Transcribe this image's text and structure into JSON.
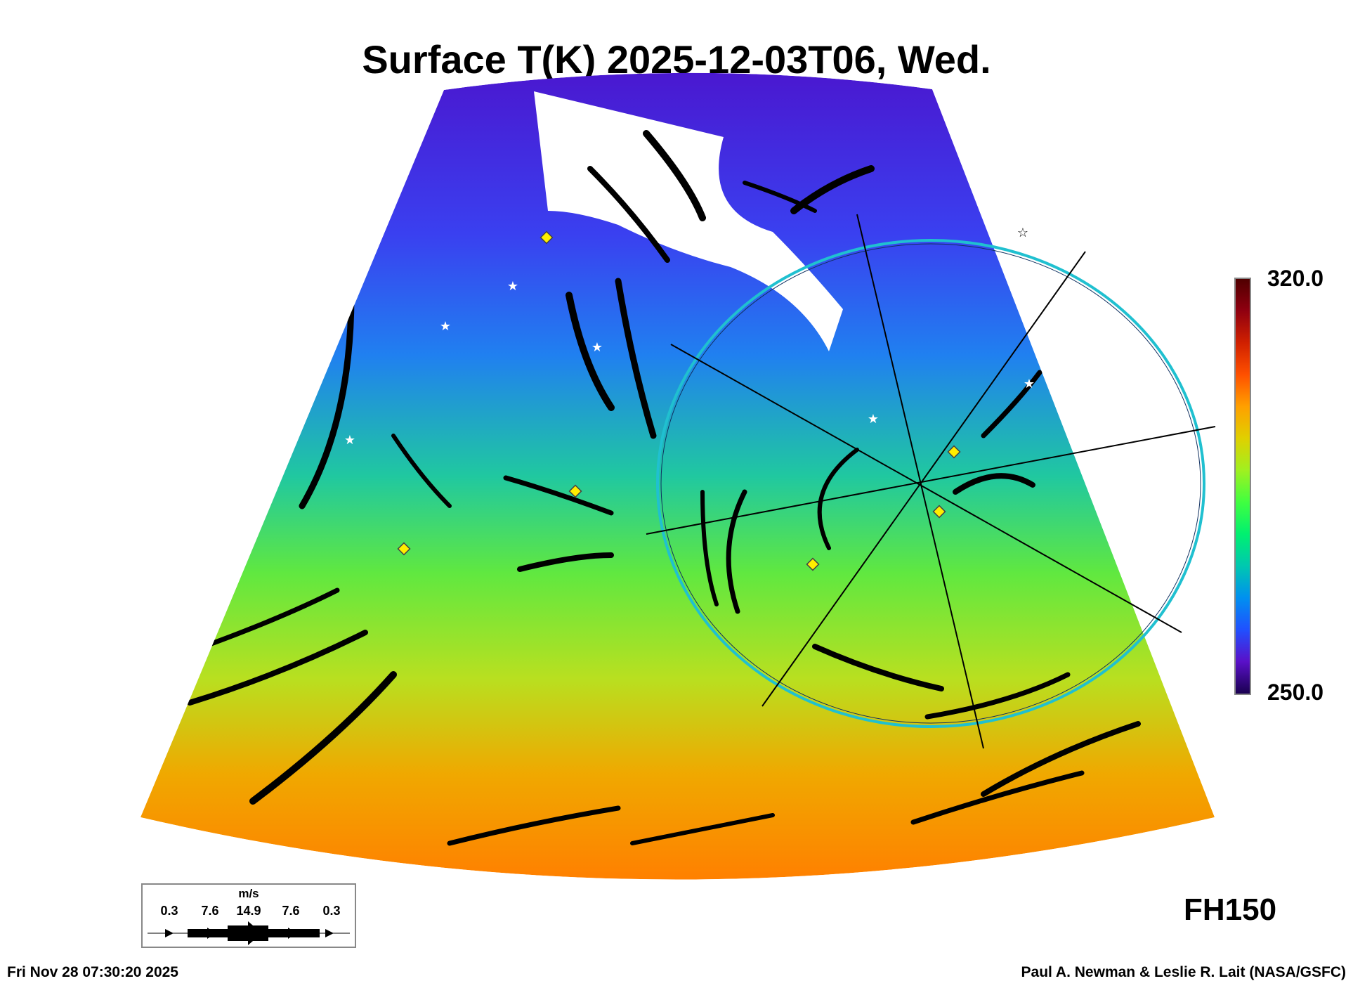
{
  "title": "Surface T(K) 2025-12-03T06, Wed.",
  "colorbar": {
    "max_label": "320.0",
    "min_label": "250.0",
    "min": 250.0,
    "max": 320.0,
    "units": "K"
  },
  "wind_legend": {
    "units": "m/s",
    "values": [
      "0.3",
      "7.6",
      "14.9",
      "7.6",
      "0.3"
    ]
  },
  "forecast_hour": "FH150",
  "footer": {
    "timestamp": "Fri Nov 28 07:30:20 2025",
    "credit": "Paul A. Newman & Leslie R. Lait (NASA/GSFC)"
  },
  "colors": {
    "circle": "#20c0d0",
    "marker": "#ffee00"
  }
}
